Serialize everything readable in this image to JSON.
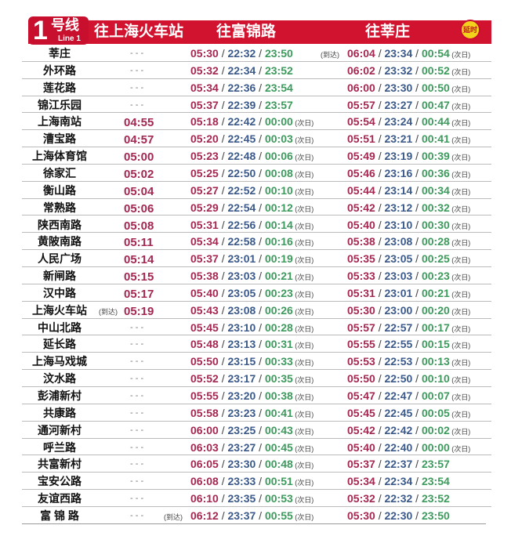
{
  "header": {
    "line_number": "1",
    "line_label": "号线",
    "line_en": "Line 1",
    "col_shj": "往上海火车站",
    "col_fjl": "往富锦路",
    "col_xz": "往莘庄",
    "delay_badge": "延时"
  },
  "labels": {
    "dash": "- - -",
    "arrive": "(到达)",
    "next_day": "(次日)",
    "sep": "/"
  },
  "colors": {
    "header": "#d2132f",
    "first_train": "#a32851",
    "last_train_short": "#3b5a8a",
    "last_train": "#3c9b5c",
    "delay_badge": "#f2d21a"
  },
  "rows": [
    {
      "station": "莘庄",
      "shj": null,
      "fjl": [
        "05:30",
        "22:32",
        "23:50"
      ],
      "fjl_next": false,
      "xz": [
        "06:04",
        "23:34",
        "00:54"
      ],
      "xz_next": true,
      "xz_arrive": true
    },
    {
      "station": "外环路",
      "shj": null,
      "fjl": [
        "05:32",
        "22:34",
        "23:52"
      ],
      "fjl_next": false,
      "xz": [
        "06:02",
        "23:32",
        "00:52"
      ],
      "xz_next": true
    },
    {
      "station": "莲花路",
      "shj": null,
      "fjl": [
        "05:34",
        "22:36",
        "23:54"
      ],
      "fjl_next": false,
      "xz": [
        "06:00",
        "23:30",
        "00:50"
      ],
      "xz_next": true
    },
    {
      "station": "锦江乐园",
      "shj": null,
      "fjl": [
        "05:37",
        "22:39",
        "23:57"
      ],
      "fjl_next": false,
      "xz": [
        "05:57",
        "23:27",
        "00:47"
      ],
      "xz_next": true
    },
    {
      "station": "上海南站",
      "shj": "04:55",
      "fjl": [
        "05:18",
        "22:42",
        "00:00"
      ],
      "fjl_next": true,
      "xz": [
        "05:54",
        "23:24",
        "00:44"
      ],
      "xz_next": true
    },
    {
      "station": "漕宝路",
      "shj": "04:57",
      "fjl": [
        "05:20",
        "22:45",
        "00:03"
      ],
      "fjl_next": true,
      "xz": [
        "05:51",
        "23:21",
        "00:41"
      ],
      "xz_next": true
    },
    {
      "station": "上海体育馆",
      "shj": "05:00",
      "fjl": [
        "05:23",
        "22:48",
        "00:06"
      ],
      "fjl_next": true,
      "xz": [
        "05:49",
        "23:19",
        "00:39"
      ],
      "xz_next": true
    },
    {
      "station": "徐家汇",
      "shj": "05:02",
      "fjl": [
        "05:25",
        "22:50",
        "00:08"
      ],
      "fjl_next": true,
      "xz": [
        "05:46",
        "23:16",
        "00:36"
      ],
      "xz_next": true
    },
    {
      "station": "衡山路",
      "shj": "05:04",
      "fjl": [
        "05:27",
        "22:52",
        "00:10"
      ],
      "fjl_next": true,
      "xz": [
        "05:44",
        "23:14",
        "00:34"
      ],
      "xz_next": true
    },
    {
      "station": "常熟路",
      "shj": "05:06",
      "fjl": [
        "05:29",
        "22:54",
        "00:12"
      ],
      "fjl_next": true,
      "xz": [
        "05:42",
        "23:12",
        "00:32"
      ],
      "xz_next": true
    },
    {
      "station": "陕西南路",
      "shj": "05:08",
      "fjl": [
        "05:31",
        "22:56",
        "00:14"
      ],
      "fjl_next": true,
      "xz": [
        "05:40",
        "23:10",
        "00:30"
      ],
      "xz_next": true
    },
    {
      "station": "黄陂南路",
      "shj": "05:11",
      "fjl": [
        "05:34",
        "22:58",
        "00:16"
      ],
      "fjl_next": true,
      "xz": [
        "05:38",
        "23:08",
        "00:28"
      ],
      "xz_next": true
    },
    {
      "station": "人民广场",
      "shj": "05:14",
      "fjl": [
        "05:37",
        "23:01",
        "00:19"
      ],
      "fjl_next": true,
      "xz": [
        "05:35",
        "23:05",
        "00:25"
      ],
      "xz_next": true
    },
    {
      "station": "新闸路",
      "shj": "05:15",
      "fjl": [
        "05:38",
        "23:03",
        "00:21"
      ],
      "fjl_next": true,
      "xz": [
        "05:33",
        "23:03",
        "00:23"
      ],
      "xz_next": true
    },
    {
      "station": "汉中路",
      "shj": "05:17",
      "fjl": [
        "05:40",
        "23:05",
        "00:23"
      ],
      "fjl_next": true,
      "xz": [
        "05:31",
        "23:01",
        "00:21"
      ],
      "xz_next": true
    },
    {
      "station": "上海火车站",
      "shj": "05:19",
      "shj_arrive": true,
      "fjl": [
        "05:43",
        "23:08",
        "00:26"
      ],
      "fjl_next": true,
      "xz": [
        "05:30",
        "23:00",
        "00:20"
      ],
      "xz_next": true
    },
    {
      "station": "中山北路",
      "shj": null,
      "fjl": [
        "05:45",
        "23:10",
        "00:28"
      ],
      "fjl_next": true,
      "xz": [
        "05:57",
        "22:57",
        "00:17"
      ],
      "xz_next": true
    },
    {
      "station": "延长路",
      "shj": null,
      "fjl": [
        "05:48",
        "23:13",
        "00:31"
      ],
      "fjl_next": true,
      "xz": [
        "05:55",
        "22:55",
        "00:15"
      ],
      "xz_next": true
    },
    {
      "station": "上海马戏城",
      "shj": null,
      "fjl": [
        "05:50",
        "23:15",
        "00:33"
      ],
      "fjl_next": true,
      "xz": [
        "05:53",
        "22:53",
        "00:13"
      ],
      "xz_next": true
    },
    {
      "station": "汶水路",
      "shj": null,
      "fjl": [
        "05:52",
        "23:17",
        "00:35"
      ],
      "fjl_next": true,
      "xz": [
        "05:50",
        "22:50",
        "00:10"
      ],
      "xz_next": true
    },
    {
      "station": "彭浦新村",
      "shj": null,
      "fjl": [
        "05:55",
        "23:20",
        "00:38"
      ],
      "fjl_next": true,
      "xz": [
        "05:47",
        "22:47",
        "00:07"
      ],
      "xz_next": true
    },
    {
      "station": "共康路",
      "shj": null,
      "fjl": [
        "05:58",
        "23:23",
        "00:41"
      ],
      "fjl_next": true,
      "xz": [
        "05:45",
        "22:45",
        "00:05"
      ],
      "xz_next": true
    },
    {
      "station": "通河新村",
      "shj": null,
      "fjl": [
        "06:00",
        "23:25",
        "00:43"
      ],
      "fjl_next": true,
      "xz": [
        "05:42",
        "22:42",
        "00:02"
      ],
      "xz_next": true
    },
    {
      "station": "呼兰路",
      "shj": null,
      "fjl": [
        "06:03",
        "23:27",
        "00:45"
      ],
      "fjl_next": true,
      "xz": [
        "05:40",
        "22:40",
        "00:00"
      ],
      "xz_next": true
    },
    {
      "station": "共富新村",
      "shj": null,
      "fjl": [
        "06:05",
        "23:30",
        "00:48"
      ],
      "fjl_next": true,
      "xz": [
        "05:37",
        "22:37",
        "23:57"
      ],
      "xz_next": false
    },
    {
      "station": "宝安公路",
      "shj": null,
      "fjl": [
        "06:08",
        "23:33",
        "00:51"
      ],
      "fjl_next": true,
      "xz": [
        "05:34",
        "22:34",
        "23:54"
      ],
      "xz_next": false
    },
    {
      "station": "友谊西路",
      "shj": null,
      "fjl": [
        "06:10",
        "23:35",
        "00:53"
      ],
      "fjl_next": true,
      "xz": [
        "05:32",
        "22:32",
        "23:52"
      ],
      "xz_next": false
    },
    {
      "station": "富 锦 路",
      "shj": null,
      "fjl": [
        "06:12",
        "23:37",
        "00:55"
      ],
      "fjl_next": true,
      "fjl_arrive": true,
      "xz": [
        "05:30",
        "22:30",
        "23:50"
      ],
      "xz_next": false
    }
  ]
}
